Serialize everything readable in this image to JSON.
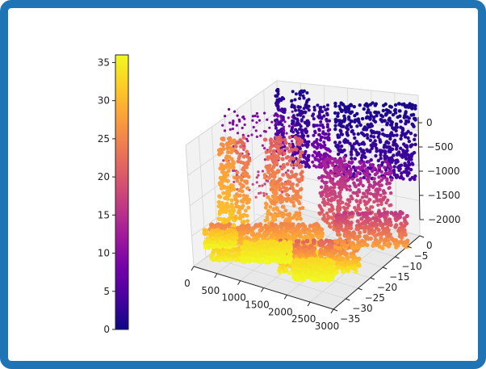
{
  "chart_data": {
    "type": "scatter",
    "title": "",
    "x_ticks": [
      "0",
      "500",
      "1000",
      "1500",
      "2000",
      "2500",
      "3000"
    ],
    "y_ticks": [
      "0",
      "−5",
      "−10",
      "−15",
      "−20",
      "−25",
      "−30",
      "−35"
    ],
    "z_ticks": [
      "0",
      "−500",
      "−1000",
      "−1500",
      "−2000"
    ],
    "x_range": [
      0,
      3000
    ],
    "y_range": [
      -35,
      0
    ],
    "z_range": [
      -2000,
      0
    ],
    "colorbar": {
      "ticks": [
        "0",
        "5",
        "10",
        "15",
        "20",
        "25",
        "30",
        "35"
      ],
      "range": [
        0,
        36
      ],
      "colormap": "plasma"
    },
    "grid": true,
    "colors": {
      "frame": "#1f74b6",
      "pane": "#f2f2f2",
      "cmap": [
        "#0d0887",
        "#46039f",
        "#7201a8",
        "#9c179e",
        "#bd3786",
        "#d8576b",
        "#ed7953",
        "#fb9f3a",
        "#fdca26",
        "#f0f921"
      ]
    }
  }
}
